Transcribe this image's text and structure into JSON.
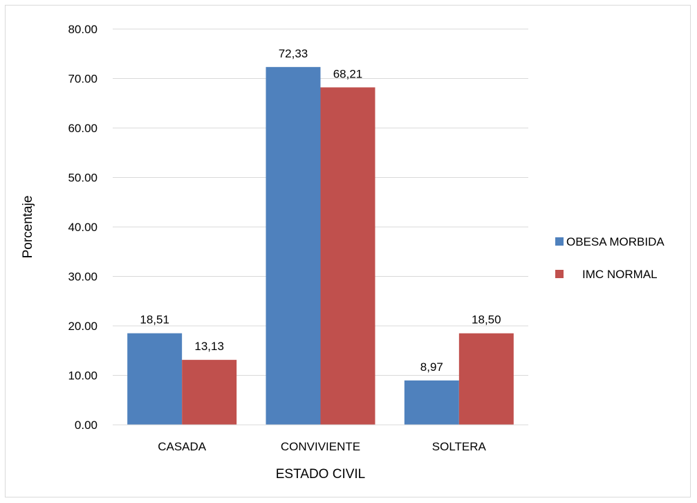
{
  "chart_data": {
    "type": "bar",
    "title": "",
    "xlabel": "ESTADO CIVIL",
    "ylabel": "Porcentaje",
    "categories": [
      "CASADA",
      "CONVIVIENTE",
      "SOLTERA"
    ],
    "series": [
      {
        "name": "OBESA MORBIDA",
        "color": "#4f81bd",
        "values": [
          18.51,
          72.33,
          8.97
        ],
        "labels": [
          "18,51",
          "72,33",
          "8,97"
        ]
      },
      {
        "name": "IMC NORMAL",
        "color": "#c0504d",
        "values": [
          13.13,
          68.21,
          18.5
        ],
        "labels": [
          "13,13",
          "68,21",
          "18,50"
        ]
      }
    ],
    "ylim": [
      0,
      80
    ],
    "yticks": [
      "0.00",
      "10.00",
      "20.00",
      "30.00",
      "40.00",
      "50.00",
      "60.00",
      "70.00",
      "80.00"
    ],
    "grid": true,
    "legend_position": "right"
  }
}
